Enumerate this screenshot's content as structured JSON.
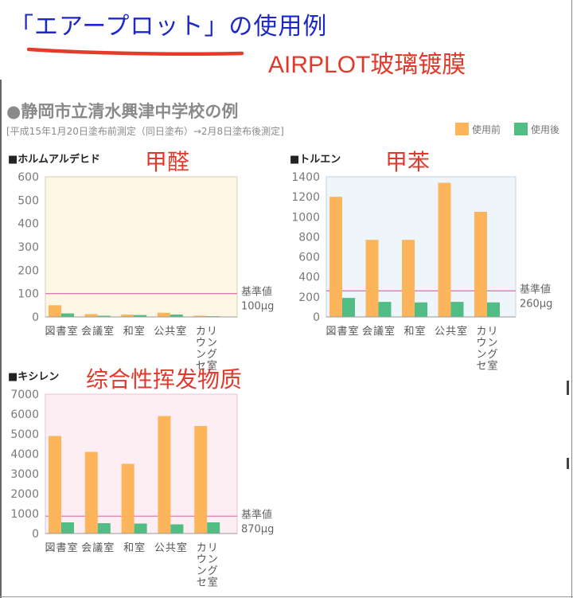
{
  "header": {
    "title": "「エアープロット」の使用例",
    "subtitle": "AIRPLOT玻璃镀膜"
  },
  "figure": {
    "school_title": "●静岡市立清水興津中学校の例",
    "date_note": "[平成15年1月20日塗布前測定（同日塗布）→2月8日塗布後測定]",
    "legend": [
      {
        "label": "使用前",
        "color": "#fcb55a"
      },
      {
        "label": "使用後",
        "color": "#4fbd84"
      }
    ],
    "colors": {
      "before": "#fcb55a",
      "after": "#4fbd84",
      "baseline": "#e07ab6",
      "axis": "#999999",
      "annotation": "#e03a2c",
      "title_blue": "#1d28c8"
    }
  },
  "chart_data": [
    {
      "type": "bar",
      "id": "formaldehyde",
      "title": "■ホルムアルデヒド",
      "annotation": "甲醛",
      "categories": [
        "図書室",
        "会議室",
        "和室",
        "公共室",
        "カウンセリング室"
      ],
      "category_lines": [
        [
          "図",
          "書",
          "室"
        ],
        [
          "会",
          "議",
          "室"
        ],
        [
          "和",
          "室"
        ],
        [
          "公",
          "共",
          "室"
        ],
        [
          "カウンセ",
          "リング室"
        ]
      ],
      "series": [
        {
          "name": "使用前",
          "values": [
            50,
            12,
            10,
            18,
            5
          ]
        },
        {
          "name": "使用後",
          "values": [
            15,
            5,
            8,
            10,
            3
          ]
        }
      ],
      "ylim": [
        0,
        600
      ],
      "yticks": [
        0,
        100,
        200,
        300,
        400,
        500,
        600
      ],
      "baseline": {
        "value": 100,
        "label": "基準値",
        "value_label": "100μg"
      },
      "background": "#fdf6e4",
      "border": "#d9cfb3"
    },
    {
      "type": "bar",
      "id": "toluene",
      "title": "■トルエン",
      "annotation": "甲苯",
      "categories": [
        "図書室",
        "会議室",
        "和室",
        "公共室",
        "カウンセリング室"
      ],
      "category_lines": [
        [
          "図",
          "書",
          "室"
        ],
        [
          "会",
          "議",
          "室"
        ],
        [
          "和",
          "室"
        ],
        [
          "公",
          "共",
          "室"
        ],
        [
          "カウンセ",
          "リング室"
        ]
      ],
      "series": [
        {
          "name": "使用前",
          "values": [
            1200,
            770,
            770,
            1340,
            1050
          ]
        },
        {
          "name": "使用後",
          "values": [
            190,
            150,
            145,
            150,
            145
          ]
        }
      ],
      "ylim": [
        0,
        1400
      ],
      "yticks": [
        0,
        200,
        400,
        600,
        800,
        1000,
        1200,
        1400
      ],
      "baseline": {
        "value": 260,
        "label": "基準値",
        "value_label": "260μg"
      },
      "background": "#eef5fb",
      "border": "#c3d3e2"
    },
    {
      "type": "bar",
      "id": "xylene",
      "title": "■キシレン",
      "annotation": "综合性挥发物质",
      "categories": [
        "図書室",
        "会議室",
        "和室",
        "公共室",
        "カウンセリング室"
      ],
      "category_lines": [
        [
          "図",
          "書",
          "室"
        ],
        [
          "会",
          "議",
          "室"
        ],
        [
          "和",
          "室"
        ],
        [
          "公",
          "共",
          "室"
        ],
        [
          "カウンセ",
          "リング室"
        ]
      ],
      "series": [
        {
          "name": "使用前",
          "values": [
            4900,
            4100,
            3500,
            5900,
            5400
          ]
        },
        {
          "name": "使用後",
          "values": [
            560,
            520,
            500,
            460,
            560
          ]
        }
      ],
      "ylim": [
        0,
        7000
      ],
      "yticks": [
        0,
        1000,
        2000,
        3000,
        4000,
        5000,
        6000,
        7000
      ],
      "baseline": {
        "value": 870,
        "label": "基準値",
        "value_label": "870μg"
      },
      "background": "#fdeef3",
      "border": "#e3c4d0"
    }
  ]
}
